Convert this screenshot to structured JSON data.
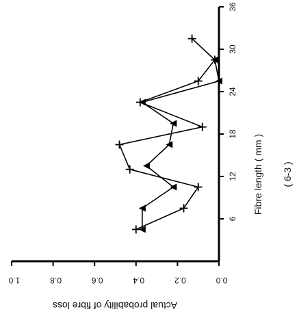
{
  "chart_data": {
    "type": "line",
    "panel_label": "( 6-3 )",
    "xlabel": "Fibre length ( mm )",
    "ylabel": "Actual probability of fibre loss",
    "xlim": [
      0,
      36
    ],
    "ylim": [
      0,
      1.0
    ],
    "x_ticks": [
      6,
      12,
      18,
      24,
      30,
      36
    ],
    "y_ticks": [
      0.0,
      0.2,
      0.4,
      0.6,
      0.8,
      1.0
    ],
    "x_tick_labels": [
      "6",
      "12",
      "18",
      "24",
      "30",
      "36"
    ],
    "y_tick_labels": [
      "0.0",
      "0.2",
      "0.4",
      "0.6",
      "0.8",
      "1.0"
    ],
    "orientation": "rotated-90-clockwise",
    "series": [
      {
        "marker": "plus",
        "x": [
          4.5,
          7.5,
          10.5,
          13,
          16.5,
          19,
          22.5,
          25.5,
          28.5,
          31.5
        ],
        "y": [
          0.4,
          0.17,
          0.1,
          0.43,
          0.48,
          0.08,
          0.38,
          0.1,
          0.02,
          0.13
        ]
      },
      {
        "marker": "triangle",
        "x": [
          4.5,
          7.5,
          10.5,
          13.5,
          16.5,
          19.5,
          22.5,
          25.5,
          28.5
        ],
        "y": [
          0.37,
          0.37,
          0.22,
          0.35,
          0.24,
          0.22,
          0.37,
          0.0,
          0.02
        ]
      }
    ]
  }
}
